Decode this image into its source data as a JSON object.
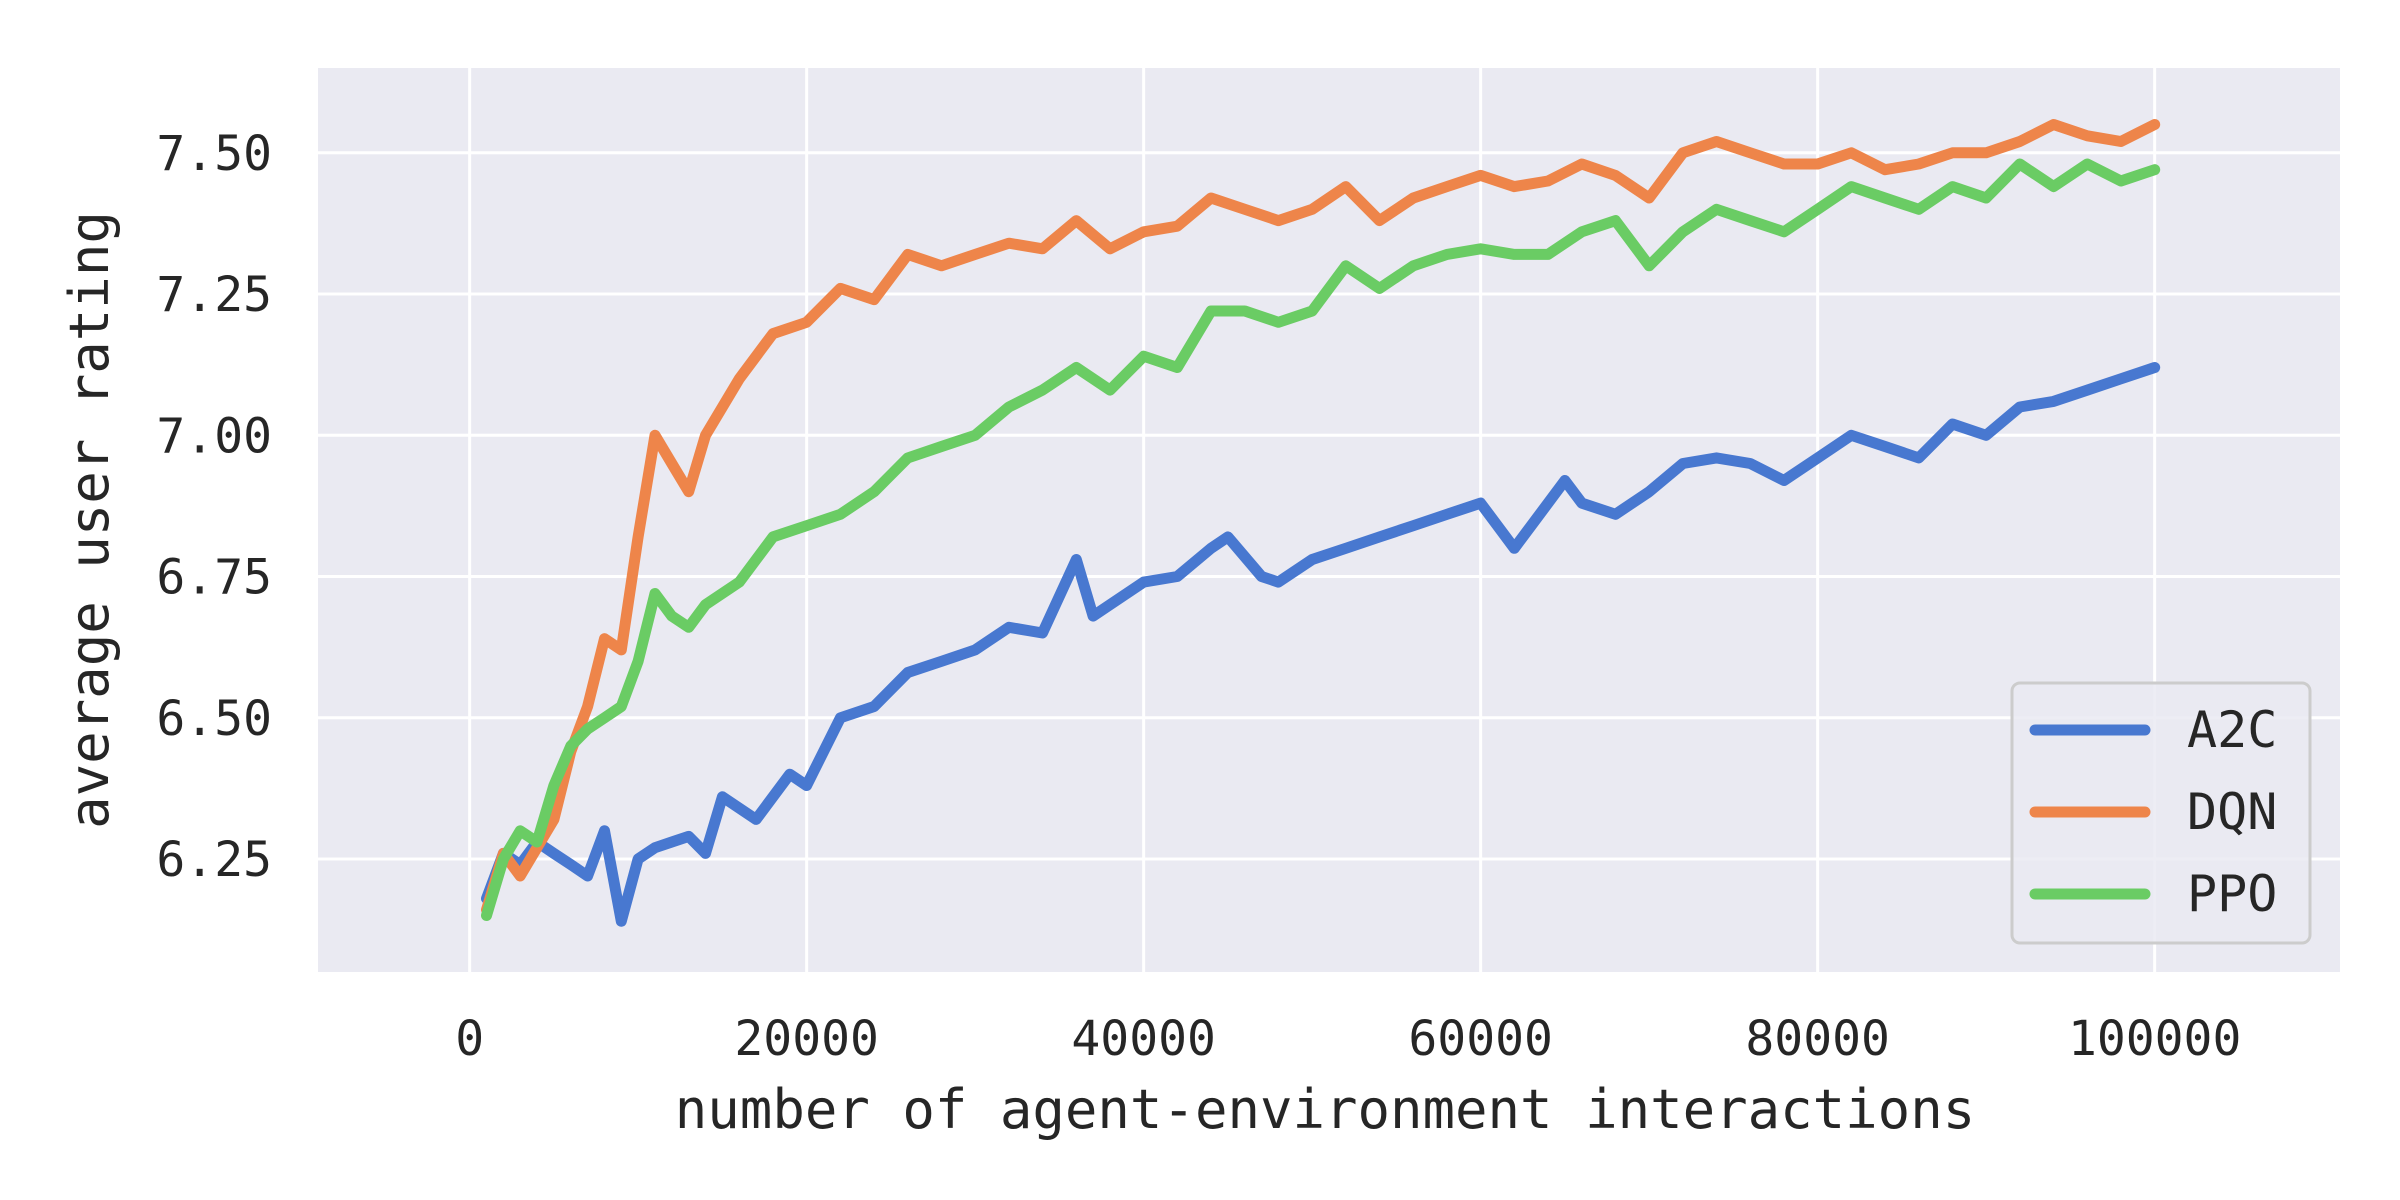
{
  "chart_data": {
    "type": "line",
    "title": "",
    "xlabel": "number of agent-environment interactions",
    "ylabel": "average user rating",
    "xlim": [
      -9000,
      111000
    ],
    "ylim": [
      6.05,
      7.65
    ],
    "xticks": [
      0,
      20000,
      40000,
      60000,
      80000,
      100000
    ],
    "xtick_labels": [
      "0",
      "20000",
      "40000",
      "60000",
      "80000",
      "100000"
    ],
    "yticks": [
      6.25,
      6.5,
      6.75,
      7.0,
      7.25,
      7.5
    ],
    "ytick_labels": [
      "6.25",
      "6.50",
      "6.75",
      "7.00",
      "7.25",
      "7.50"
    ],
    "grid": true,
    "legend_position": "bottom-right",
    "series": [
      {
        "name": "A2C",
        "color": "#4878d0",
        "x": [
          1000,
          2000,
          3000,
          4000,
          5000,
          6000,
          7000,
          8000,
          9000,
          10000,
          11000,
          12000,
          13000,
          14000,
          15000,
          17000,
          19000,
          20000,
          22000,
          24000,
          26000,
          28000,
          30000,
          32000,
          34000,
          36000,
          37000,
          38000,
          40000,
          42000,
          44000,
          45000,
          47000,
          48000,
          50000,
          52000,
          54000,
          56000,
          58000,
          60000,
          62000,
          63000,
          65000,
          66000,
          68000,
          70000,
          72000,
          74000,
          76000,
          78000,
          80000,
          82000,
          84000,
          86000,
          88000,
          90000,
          92000,
          94000,
          96000,
          98000,
          100000
        ],
        "y": [
          6.18,
          6.26,
          6.24,
          6.28,
          6.26,
          6.24,
          6.22,
          6.3,
          6.14,
          6.25,
          6.27,
          6.28,
          6.29,
          6.26,
          6.36,
          6.32,
          6.4,
          6.38,
          6.5,
          6.52,
          6.58,
          6.6,
          6.62,
          6.66,
          6.65,
          6.78,
          6.68,
          6.7,
          6.74,
          6.75,
          6.8,
          6.82,
          6.75,
          6.74,
          6.78,
          6.8,
          6.82,
          6.84,
          6.86,
          6.88,
          6.8,
          6.84,
          6.92,
          6.88,
          6.86,
          6.9,
          6.95,
          6.96,
          6.95,
          6.92,
          6.96,
          7.0,
          6.98,
          6.96,
          7.02,
          7.0,
          7.05,
          7.06,
          7.08,
          7.1,
          7.12
        ]
      },
      {
        "name": "DQN",
        "color": "#ee854a",
        "x": [
          1000,
          2000,
          3000,
          4000,
          5000,
          6000,
          7000,
          8000,
          9000,
          10000,
          11000,
          12000,
          13000,
          14000,
          16000,
          18000,
          20000,
          22000,
          24000,
          26000,
          28000,
          30000,
          32000,
          34000,
          36000,
          38000,
          40000,
          42000,
          44000,
          46000,
          48000,
          50000,
          52000,
          54000,
          56000,
          58000,
          60000,
          62000,
          64000,
          66000,
          68000,
          70000,
          72000,
          74000,
          76000,
          78000,
          80000,
          82000,
          84000,
          86000,
          88000,
          90000,
          92000,
          94000,
          96000,
          98000,
          100000
        ],
        "y": [
          6.16,
          6.26,
          6.22,
          6.27,
          6.32,
          6.44,
          6.52,
          6.64,
          6.62,
          6.82,
          7.0,
          6.95,
          6.9,
          7.0,
          7.1,
          7.18,
          7.2,
          7.26,
          7.24,
          7.32,
          7.3,
          7.32,
          7.34,
          7.33,
          7.38,
          7.33,
          7.36,
          7.37,
          7.42,
          7.4,
          7.38,
          7.4,
          7.44,
          7.38,
          7.42,
          7.44,
          7.46,
          7.44,
          7.45,
          7.48,
          7.46,
          7.42,
          7.5,
          7.52,
          7.5,
          7.48,
          7.48,
          7.5,
          7.47,
          7.48,
          7.5,
          7.5,
          7.52,
          7.55,
          7.53,
          7.52,
          7.55
        ]
      },
      {
        "name": "PPO",
        "color": "#6acc64",
        "x": [
          1000,
          2000,
          3000,
          4000,
          5000,
          6000,
          7000,
          8000,
          9000,
          10000,
          11000,
          12000,
          13000,
          14000,
          16000,
          18000,
          20000,
          22000,
          24000,
          26000,
          28000,
          30000,
          32000,
          34000,
          36000,
          38000,
          40000,
          42000,
          44000,
          46000,
          48000,
          50000,
          52000,
          54000,
          56000,
          58000,
          60000,
          62000,
          64000,
          66000,
          68000,
          70000,
          72000,
          74000,
          76000,
          78000,
          80000,
          82000,
          84000,
          86000,
          88000,
          90000,
          92000,
          94000,
          96000,
          98000,
          100000
        ],
        "y": [
          6.15,
          6.25,
          6.3,
          6.28,
          6.38,
          6.45,
          6.48,
          6.5,
          6.52,
          6.6,
          6.72,
          6.68,
          6.66,
          6.7,
          6.74,
          6.82,
          6.84,
          6.86,
          6.9,
          6.96,
          6.98,
          7.0,
          7.05,
          7.08,
          7.12,
          7.08,
          7.14,
          7.12,
          7.22,
          7.22,
          7.2,
          7.22,
          7.3,
          7.26,
          7.3,
          7.32,
          7.33,
          7.32,
          7.32,
          7.36,
          7.38,
          7.3,
          7.36,
          7.4,
          7.38,
          7.36,
          7.4,
          7.44,
          7.42,
          7.4,
          7.44,
          7.42,
          7.48,
          7.44,
          7.48,
          7.45,
          7.47
        ]
      }
    ]
  }
}
